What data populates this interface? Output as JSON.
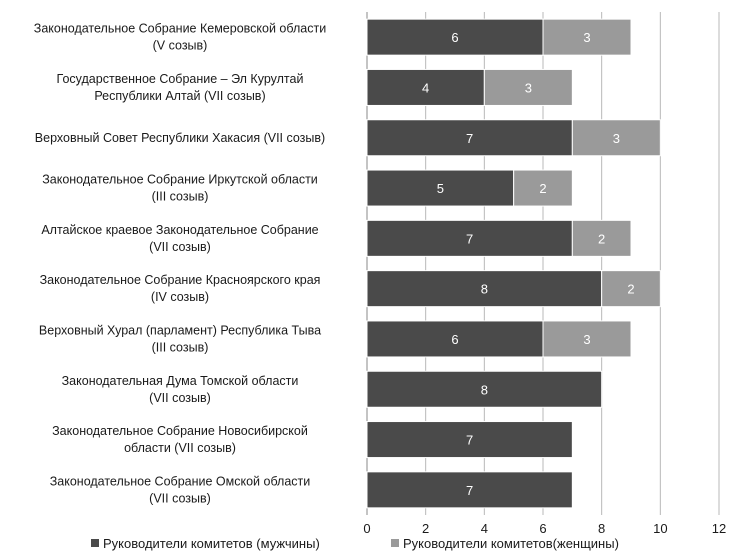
{
  "chart_data": {
    "type": "bar",
    "orientation": "horizontal",
    "stacked": true,
    "categories": [
      [
        "Законодательное Собрание Кемеровской области",
        "(V созыв)"
      ],
      [
        "Государственное Собрание – Эл Курултай",
        "Республики Алтай (VII созыв)"
      ],
      [
        "Верховный Совет Республики Хакасия (VII созыв)"
      ],
      [
        "Законодательное Собрание Иркутской области",
        "(III созыв)"
      ],
      [
        "Алтайское краевое Законодательное Собрание",
        "(VII созыв)"
      ],
      [
        "Законодательное Собрание Красноярского  края",
        "(IV созыв)"
      ],
      [
        "Верховный Хурал (парламент) Республика Тыва",
        "(III созыв)"
      ],
      [
        "Законодательная Дума Томской области",
        "(VII созыв)"
      ],
      [
        "Законодательное Собрание  Новосибирской",
        "области (VII созыв)"
      ],
      [
        "Законодательное Собрание Омской области",
        "(VII созыв)"
      ]
    ],
    "series": [
      {
        "name": "Руководители комитетов (мужчины)",
        "color": "#4a4a4a",
        "values": [
          6,
          4,
          7,
          5,
          7,
          8,
          6,
          8,
          7,
          7
        ]
      },
      {
        "name": "Руководители комитетов(женщины)",
        "color": "#9a9a9a",
        "values": [
          3,
          3,
          3,
          2,
          2,
          2,
          3,
          0,
          0,
          0
        ]
      }
    ],
    "xlim": [
      0,
      12
    ],
    "xticks": [
      0,
      2,
      4,
      6,
      8,
      10,
      12
    ],
    "grid": true,
    "legend_position": "bottom",
    "data_labels": true
  }
}
